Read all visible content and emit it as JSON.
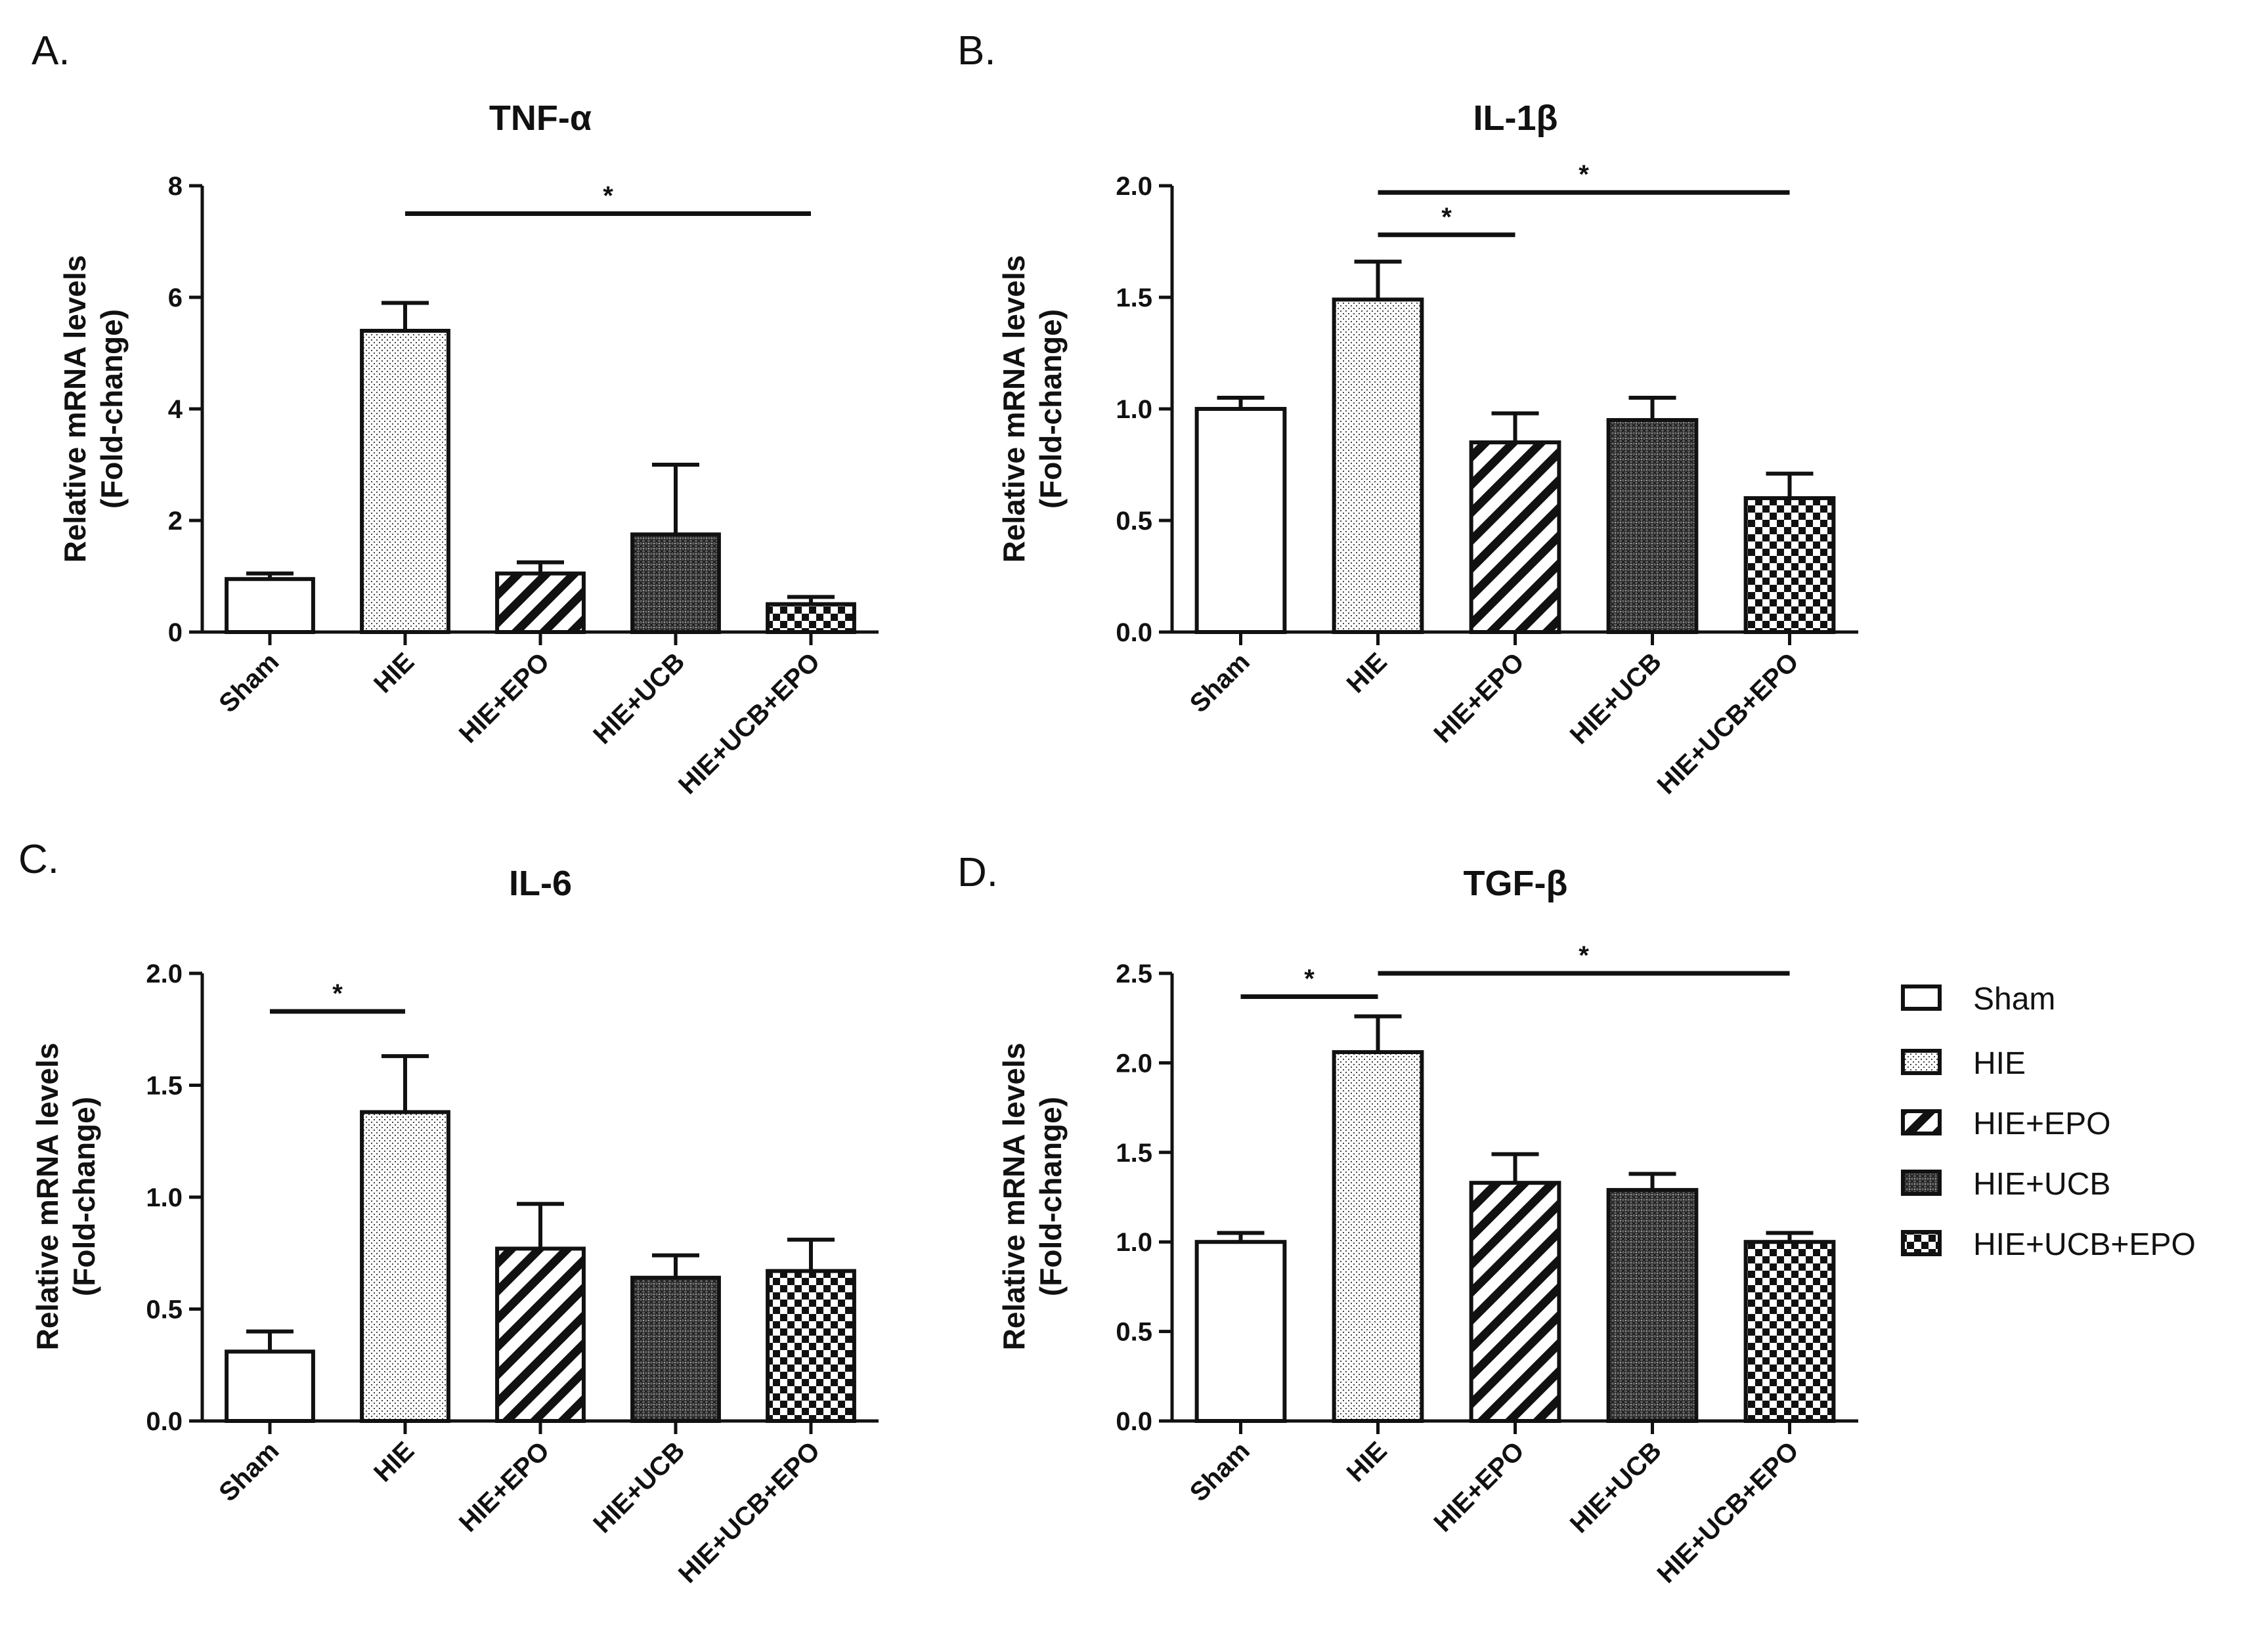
{
  "legend": {
    "items": [
      {
        "label": "Sham",
        "pattern": "white"
      },
      {
        "label": "HIE",
        "pattern": "dots"
      },
      {
        "label": "HIE+EPO",
        "pattern": "stripes"
      },
      {
        "label": "HIE+UCB",
        "pattern": "crosshatch"
      },
      {
        "label": "HIE+UCB+EPO",
        "pattern": "checker"
      }
    ]
  },
  "colors": {
    "ink": "#111111",
    "background": "#ffffff"
  },
  "chart_data": [
    {
      "panel": "A.",
      "type": "bar",
      "title": "TNF-α",
      "ylabel": [
        "Relative mRNA levels",
        "(Fold-change)"
      ],
      "xlabel": "",
      "categories": [
        "Sham",
        "HIE",
        "HIE+EPO",
        "HIE+UCB",
        "HIE+UCB+EPO"
      ],
      "values": [
        0.95,
        5.4,
        1.05,
        1.75,
        0.5
      ],
      "errors": [
        0.1,
        0.5,
        0.2,
        1.25,
        0.13
      ],
      "ylim": [
        0,
        8
      ],
      "yticks": [
        0,
        2,
        4,
        6,
        8
      ],
      "ytick_labels": [
        "0",
        "2",
        "4",
        "6",
        "8"
      ],
      "significance": [
        {
          "from": 1,
          "to": 4,
          "y": 7.5,
          "label": "*"
        }
      ]
    },
    {
      "panel": "B.",
      "type": "bar",
      "title": "IL-1β",
      "ylabel": [
        "Relative mRNA levels",
        "(Fold-change)"
      ],
      "xlabel": "",
      "categories": [
        "Sham",
        "HIE",
        "HIE+EPO",
        "HIE+UCB",
        "HIE+UCB+EPO"
      ],
      "values": [
        1.0,
        1.49,
        0.85,
        0.95,
        0.6
      ],
      "errors": [
        0.05,
        0.17,
        0.13,
        0.1,
        0.11
      ],
      "ylim": [
        0,
        2.0
      ],
      "yticks": [
        0,
        0.5,
        1.0,
        1.5,
        2.0
      ],
      "ytick_labels": [
        "0.0",
        "0.5",
        "1.0",
        "1.5",
        "2.0"
      ],
      "significance": [
        {
          "from": 1,
          "to": 4,
          "y": 1.97,
          "label": "*"
        },
        {
          "from": 1,
          "to": 2,
          "y": 1.78,
          "label": "*"
        }
      ]
    },
    {
      "panel": "C.",
      "type": "bar",
      "title": "IL-6",
      "ylabel": [
        "Relative mRNA levels",
        "(Fold-change)"
      ],
      "xlabel": "",
      "categories": [
        "Sham",
        "HIE",
        "HIE+EPO",
        "HIE+UCB",
        "HIE+UCB+EPO"
      ],
      "values": [
        0.31,
        1.38,
        0.77,
        0.64,
        0.67
      ],
      "errors": [
        0.09,
        0.25,
        0.2,
        0.1,
        0.14
      ],
      "ylim": [
        0,
        2.0
      ],
      "yticks": [
        0,
        0.5,
        1.0,
        1.5,
        2.0
      ],
      "ytick_labels": [
        "0.0",
        "0.5",
        "1.0",
        "1.5",
        "2.0"
      ],
      "significance": [
        {
          "from": 0,
          "to": 1,
          "y": 1.83,
          "label": "*"
        }
      ]
    },
    {
      "panel": "D.",
      "type": "bar",
      "title": "TGF-β",
      "ylabel": [
        "Relative mRNA levels",
        "(Fold-change)"
      ],
      "xlabel": "",
      "categories": [
        "Sham",
        "HIE",
        "HIE+EPO",
        "HIE+UCB",
        "HIE+UCB+EPO"
      ],
      "values": [
        1.0,
        2.06,
        1.33,
        1.29,
        1.0
      ],
      "errors": [
        0.05,
        0.2,
        0.16,
        0.09,
        0.05
      ],
      "ylim": [
        0,
        2.5
      ],
      "yticks": [
        0,
        0.5,
        1.0,
        1.5,
        2.0,
        2.5
      ],
      "ytick_labels": [
        "0.0",
        "0.5",
        "1.0",
        "1.5",
        "2.0",
        "2.5"
      ],
      "significance": [
        {
          "from": 1,
          "to": 4,
          "y": 2.5,
          "label": "*"
        },
        {
          "from": 0,
          "to": 1,
          "y": 2.37,
          "label": "*"
        }
      ]
    }
  ]
}
